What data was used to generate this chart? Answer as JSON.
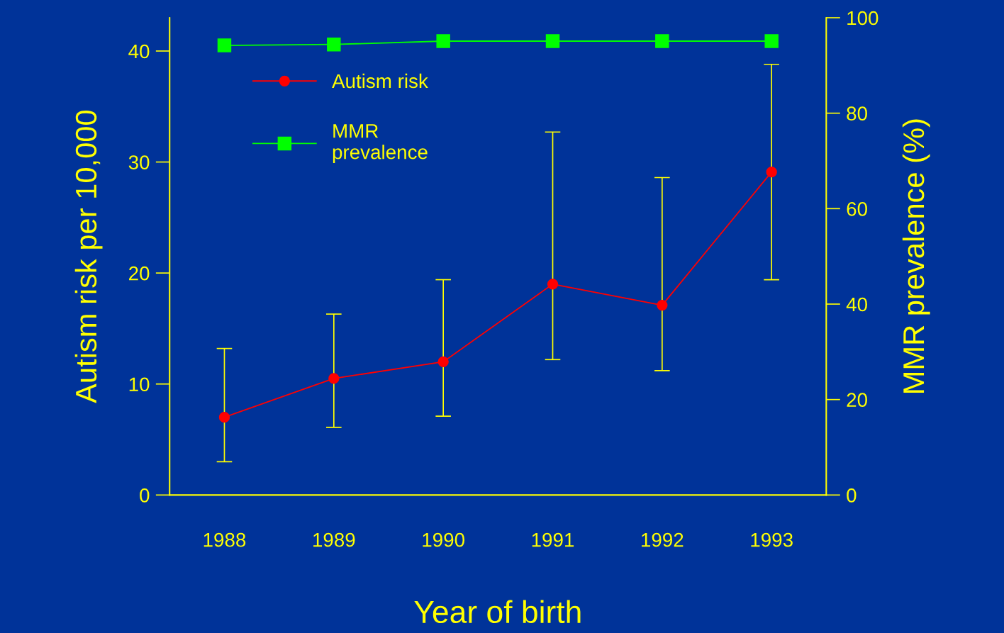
{
  "chart_data": {
    "type": "line",
    "xlabel": "Year of birth",
    "ylabel": "Autism risk per 10,000",
    "y2label": "MMR prevalence (%)",
    "categories": [
      "1988",
      "1989",
      "1990",
      "1991",
      "1992",
      "1993"
    ],
    "series": [
      {
        "name": "Autism risk",
        "color": "#ff0000",
        "marker": "circle",
        "values": [
          7.0,
          10.5,
          12.0,
          19.0,
          17.1,
          29.1
        ],
        "errors": [
          [
            3.0,
            13.2
          ],
          [
            6.1,
            16.3
          ],
          [
            7.1,
            19.4
          ],
          [
            12.2,
            32.7
          ],
          [
            11.2,
            28.6
          ],
          [
            19.4,
            38.8
          ]
        ]
      },
      {
        "name": "MMR\nprevalence",
        "color": "#00ff00",
        "marker": "square",
        "axis": "y2",
        "values": [
          94.2,
          94.4,
          95.1,
          95.1,
          95.1,
          95.1
        ]
      }
    ],
    "ylim": [
      0,
      43
    ],
    "yticks": [
      0,
      10,
      20,
      30,
      40
    ],
    "y2lim": [
      0,
      100
    ],
    "y2ticks": [
      0,
      20,
      40,
      60,
      80,
      100
    ],
    "grid": false,
    "legend": "top left"
  }
}
